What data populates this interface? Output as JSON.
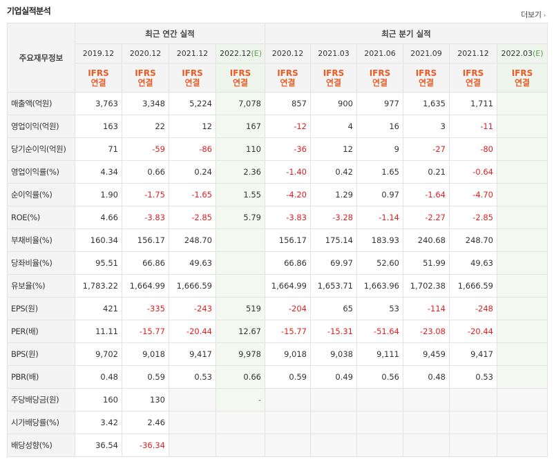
{
  "header": {
    "title": "기업실적분석",
    "more_label": "더보기",
    "more_arrow": "›"
  },
  "table": {
    "row_header_label": "주요재무정보",
    "annual_label": "최근 연간 실적",
    "quarter_label": "최근 분기 실적",
    "annual_periods": [
      "2019.12",
      "2020.12",
      "2021.12",
      "2022.12"
    ],
    "estimate_suffix": "(E)",
    "quarter_periods": [
      "2020.12",
      "2021.03",
      "2021.06",
      "2021.09",
      "2021.12",
      "2022.03"
    ],
    "ifrs": "IFRS",
    "consolidated": "연결",
    "rows": [
      {
        "label": "매출액(억원)",
        "values": [
          "3,763",
          "3,348",
          "5,224",
          "7,078",
          "857",
          "900",
          "977",
          "1,635",
          "1,711",
          ""
        ]
      },
      {
        "label": "영업이익(억원)",
        "values": [
          "163",
          "22",
          "12",
          "167",
          "-12",
          "4",
          "16",
          "3",
          "-11",
          ""
        ]
      },
      {
        "label": "당기순이익(억원)",
        "values": [
          "71",
          "-59",
          "-86",
          "110",
          "-36",
          "12",
          "9",
          "-27",
          "-80",
          ""
        ]
      },
      {
        "label": "영업이익률(%)",
        "values": [
          "4.34",
          "0.66",
          "0.24",
          "2.36",
          "-1.40",
          "0.42",
          "1.65",
          "0.21",
          "-0.64",
          ""
        ]
      },
      {
        "label": "순이익률(%)",
        "values": [
          "1.90",
          "-1.75",
          "-1.65",
          "1.55",
          "-4.20",
          "1.29",
          "0.97",
          "-1.64",
          "-4.70",
          ""
        ]
      },
      {
        "label": "ROE(%)",
        "values": [
          "4.66",
          "-3.83",
          "-2.85",
          "5.79",
          "-3.83",
          "-3.28",
          "-1.14",
          "-2.27",
          "-2.85",
          ""
        ]
      },
      {
        "label": "부채비율(%)",
        "values": [
          "160.34",
          "156.17",
          "248.70",
          "",
          "156.17",
          "175.14",
          "183.93",
          "240.68",
          "248.70",
          ""
        ]
      },
      {
        "label": "당좌비율(%)",
        "values": [
          "95.51",
          "66.86",
          "49.63",
          "",
          "66.86",
          "69.97",
          "52.60",
          "51.99",
          "49.63",
          ""
        ]
      },
      {
        "label": "유보율(%)",
        "values": [
          "1,783.22",
          "1,664.99",
          "1,666.59",
          "",
          "1,664.99",
          "1,653.71",
          "1,663.96",
          "1,702.38",
          "1,666.59",
          ""
        ]
      },
      {
        "label": "EPS(원)",
        "values": [
          "421",
          "-335",
          "-243",
          "519",
          "-204",
          "65",
          "53",
          "-114",
          "-248",
          ""
        ]
      },
      {
        "label": "PER(배)",
        "values": [
          "11.11",
          "-15.77",
          "-20.44",
          "12.67",
          "-15.77",
          "-15.31",
          "-51.64",
          "-23.08",
          "-20.44",
          ""
        ]
      },
      {
        "label": "BPS(원)",
        "values": [
          "9,702",
          "9,018",
          "9,417",
          "9,978",
          "9,018",
          "9,038",
          "9,111",
          "9,459",
          "9,417",
          ""
        ]
      },
      {
        "label": "PBR(배)",
        "values": [
          "0.48",
          "0.59",
          "0.53",
          "0.66",
          "0.59",
          "0.49",
          "0.56",
          "0.48",
          "0.53",
          ""
        ]
      },
      {
        "label": "주당배당금(원)",
        "values": [
          "160",
          "130",
          "",
          "-",
          "",
          "",
          "",
          "",
          "",
          ""
        ]
      },
      {
        "label": "시가배당률(%)",
        "values": [
          "3.42",
          "2.46",
          "",
          "",
          "",
          "",
          "",
          "",
          "",
          ""
        ]
      },
      {
        "label": "배당성향(%)",
        "values": [
          "36.54",
          "-36.34",
          "",
          "",
          "",
          "",
          "",
          "",
          "",
          ""
        ]
      }
    ]
  }
}
